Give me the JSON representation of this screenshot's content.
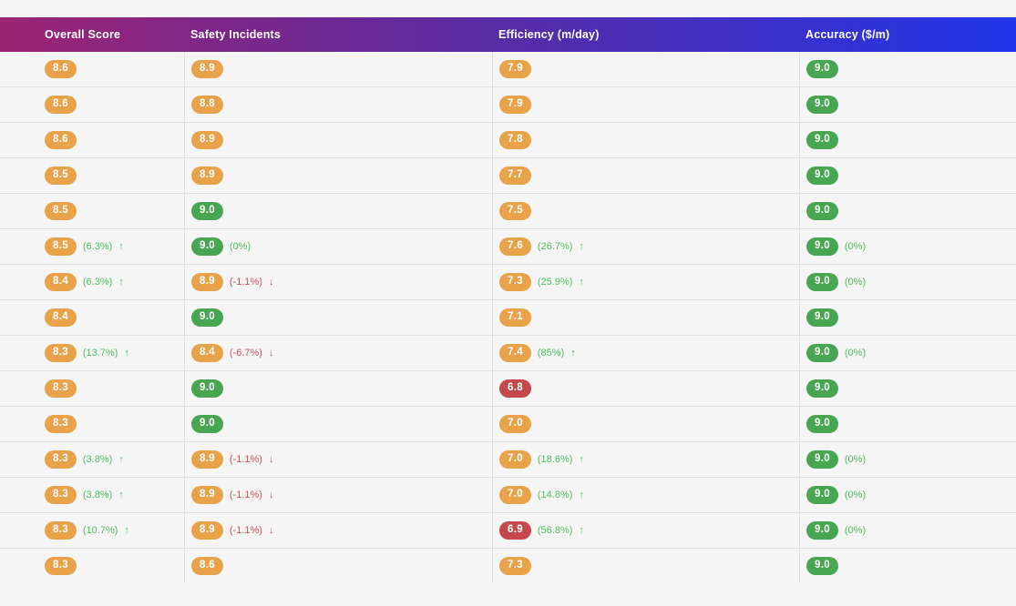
{
  "header": {
    "columns": [
      "Overall Score",
      "Safety Incidents",
      "Efficiency (m/day)",
      "Accuracy ($/m)"
    ]
  },
  "colors": {
    "header_gradient_start": "#9b2472",
    "header_gradient_mid": "#5c2ba0",
    "header_gradient_end": "#2135ea",
    "pill_orange": "#e7a24a",
    "pill_green": "#48a653",
    "pill_red": "#c5484c",
    "delta_green": "#4fbe5d",
    "delta_red": "#cc4f5e",
    "row_bg": "#f5f5f6",
    "divider": "#dfdfe1"
  },
  "chart_data": {
    "type": "table",
    "columns": [
      "Overall Score",
      "Safety Incidents",
      "Efficiency (m/day)",
      "Accuracy ($/m)"
    ],
    "rows": [
      [
        8.6,
        8.9,
        7.9,
        9.0
      ],
      [
        8.6,
        8.8,
        7.9,
        9.0
      ],
      [
        8.6,
        8.9,
        7.8,
        9.0
      ],
      [
        8.5,
        8.9,
        7.7,
        9.0
      ],
      [
        8.5,
        9.0,
        7.5,
        9.0
      ],
      [
        8.5,
        9.0,
        7.6,
        9.0
      ],
      [
        8.4,
        8.9,
        7.3,
        9.0
      ],
      [
        8.4,
        9.0,
        7.1,
        9.0
      ],
      [
        8.3,
        8.4,
        7.4,
        9.0
      ],
      [
        8.3,
        9.0,
        6.8,
        9.0
      ],
      [
        8.3,
        9.0,
        7.0,
        9.0
      ],
      [
        8.3,
        8.9,
        7.0,
        9.0
      ],
      [
        8.3,
        8.9,
        7.0,
        9.0
      ],
      [
        8.3,
        8.9,
        6.9,
        9.0
      ],
      [
        8.3,
        8.6,
        7.3,
        9.0
      ]
    ]
  },
  "rows": [
    {
      "cells": [
        {
          "value": "8.6",
          "tone": "orange"
        },
        {
          "value": "8.9",
          "tone": "orange"
        },
        {
          "value": "7.9",
          "tone": "orange"
        },
        {
          "value": "9.0",
          "tone": "green"
        }
      ]
    },
    {
      "cells": [
        {
          "value": "8.6",
          "tone": "orange"
        },
        {
          "value": "8.8",
          "tone": "orange"
        },
        {
          "value": "7.9",
          "tone": "orange"
        },
        {
          "value": "9.0",
          "tone": "green"
        }
      ]
    },
    {
      "cells": [
        {
          "value": "8.6",
          "tone": "orange"
        },
        {
          "value": "8.9",
          "tone": "orange"
        },
        {
          "value": "7.8",
          "tone": "orange"
        },
        {
          "value": "9.0",
          "tone": "green"
        }
      ]
    },
    {
      "cells": [
        {
          "value": "8.5",
          "tone": "orange"
        },
        {
          "value": "8.9",
          "tone": "orange"
        },
        {
          "value": "7.7",
          "tone": "orange"
        },
        {
          "value": "9.0",
          "tone": "green"
        }
      ]
    },
    {
      "cells": [
        {
          "value": "8.5",
          "tone": "orange"
        },
        {
          "value": "9.0",
          "tone": "green"
        },
        {
          "value": "7.5",
          "tone": "orange"
        },
        {
          "value": "9.0",
          "tone": "green"
        }
      ]
    },
    {
      "cells": [
        {
          "value": "8.5",
          "tone": "orange",
          "delta": "(6.3%)",
          "trend": "up",
          "delta_tone": "green"
        },
        {
          "value": "9.0",
          "tone": "green",
          "delta": "(0%)",
          "trend": null,
          "delta_tone": "green"
        },
        {
          "value": "7.6",
          "tone": "orange",
          "delta": "(26.7%)",
          "trend": "up",
          "delta_tone": "green"
        },
        {
          "value": "9.0",
          "tone": "green",
          "delta": "(0%)",
          "trend": null,
          "delta_tone": "green"
        }
      ]
    },
    {
      "cells": [
        {
          "value": "8.4",
          "tone": "orange",
          "delta": "(6.3%)",
          "trend": "up",
          "delta_tone": "green"
        },
        {
          "value": "8.9",
          "tone": "orange",
          "delta": "(-1.1%)",
          "trend": "down",
          "delta_tone": "red"
        },
        {
          "value": "7.3",
          "tone": "orange",
          "delta": "(25.9%)",
          "trend": "up",
          "delta_tone": "green"
        },
        {
          "value": "9.0",
          "tone": "green",
          "delta": "(0%)",
          "trend": null,
          "delta_tone": "green"
        }
      ]
    },
    {
      "cells": [
        {
          "value": "8.4",
          "tone": "orange"
        },
        {
          "value": "9.0",
          "tone": "green"
        },
        {
          "value": "7.1",
          "tone": "orange"
        },
        {
          "value": "9.0",
          "tone": "green"
        }
      ]
    },
    {
      "cells": [
        {
          "value": "8.3",
          "tone": "orange",
          "delta": "(13.7%)",
          "trend": "up",
          "delta_tone": "green"
        },
        {
          "value": "8.4",
          "tone": "orange",
          "delta": "(-6.7%)",
          "trend": "down",
          "delta_tone": "red"
        },
        {
          "value": "7.4",
          "tone": "orange",
          "delta": "(85%)",
          "trend": "up",
          "delta_tone": "green"
        },
        {
          "value": "9.0",
          "tone": "green",
          "delta": "(0%)",
          "trend": null,
          "delta_tone": "green"
        }
      ]
    },
    {
      "cells": [
        {
          "value": "8.3",
          "tone": "orange"
        },
        {
          "value": "9.0",
          "tone": "green"
        },
        {
          "value": "6.8",
          "tone": "red"
        },
        {
          "value": "9.0",
          "tone": "green"
        }
      ]
    },
    {
      "cells": [
        {
          "value": "8.3",
          "tone": "orange"
        },
        {
          "value": "9.0",
          "tone": "green"
        },
        {
          "value": "7.0",
          "tone": "orange"
        },
        {
          "value": "9.0",
          "tone": "green"
        }
      ]
    },
    {
      "cells": [
        {
          "value": "8.3",
          "tone": "orange",
          "delta": "(3.8%)",
          "trend": "up",
          "delta_tone": "green"
        },
        {
          "value": "8.9",
          "tone": "orange",
          "delta": "(-1.1%)",
          "trend": "down",
          "delta_tone": "red"
        },
        {
          "value": "7.0",
          "tone": "orange",
          "delta": "(18.6%)",
          "trend": "up",
          "delta_tone": "green"
        },
        {
          "value": "9.0",
          "tone": "green",
          "delta": "(0%)",
          "trend": null,
          "delta_tone": "green"
        }
      ]
    },
    {
      "cells": [
        {
          "value": "8.3",
          "tone": "orange",
          "delta": "(3.8%)",
          "trend": "up",
          "delta_tone": "green"
        },
        {
          "value": "8.9",
          "tone": "orange",
          "delta": "(-1.1%)",
          "trend": "down",
          "delta_tone": "red"
        },
        {
          "value": "7.0",
          "tone": "orange",
          "delta": "(14.8%)",
          "trend": "up",
          "delta_tone": "green"
        },
        {
          "value": "9.0",
          "tone": "green",
          "delta": "(0%)",
          "trend": null,
          "delta_tone": "green"
        }
      ]
    },
    {
      "cells": [
        {
          "value": "8.3",
          "tone": "orange",
          "delta": "(10.7%)",
          "trend": "up",
          "delta_tone": "green"
        },
        {
          "value": "8.9",
          "tone": "orange",
          "delta": "(-1.1%)",
          "trend": "down",
          "delta_tone": "red"
        },
        {
          "value": "6.9",
          "tone": "red",
          "delta": "(56.8%)",
          "trend": "up",
          "delta_tone": "green"
        },
        {
          "value": "9.0",
          "tone": "green",
          "delta": "(0%)",
          "trend": null,
          "delta_tone": "green"
        }
      ]
    },
    {
      "cells": [
        {
          "value": "8.3",
          "tone": "orange"
        },
        {
          "value": "8.6",
          "tone": "orange"
        },
        {
          "value": "7.3",
          "tone": "orange"
        },
        {
          "value": "9.0",
          "tone": "green"
        }
      ]
    }
  ]
}
